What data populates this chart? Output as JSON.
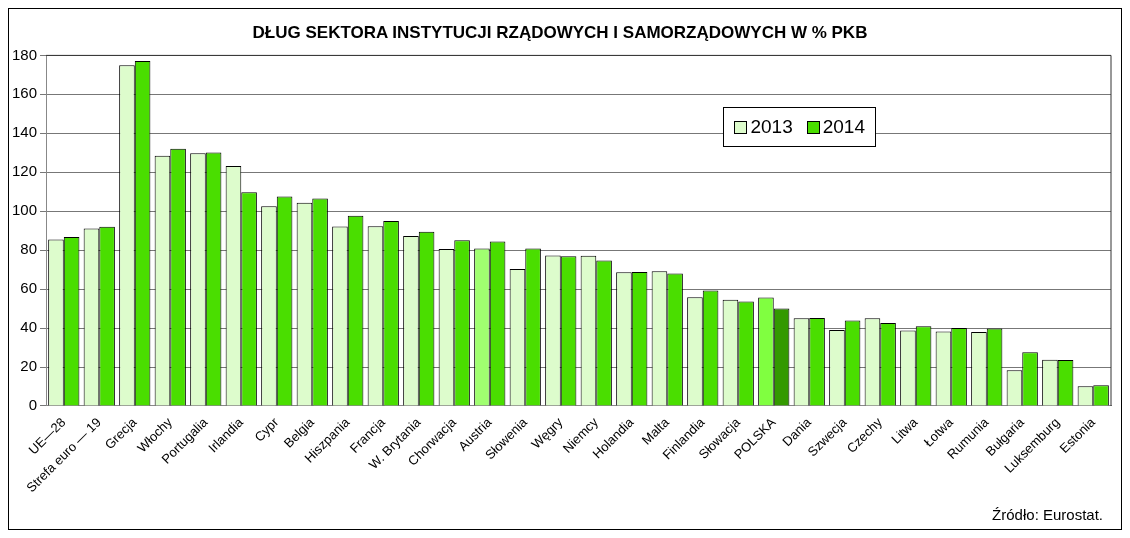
{
  "chart_data": {
    "type": "bar",
    "title": "DŁUG SEKTORA INSTYTUCJI RZĄDOWYCH I SAMORZĄDOWYCH W % PKB",
    "categories": [
      "UE—28",
      "Strefa euro — 19",
      "Grecja",
      "Włochy",
      "Portugalia",
      "Irlandia",
      "Cypr",
      "Belgia",
      "Hiszpania",
      "Francja",
      "W. Brytania",
      "Chorwacja",
      "Austria",
      "Słowenia",
      "Węgry",
      "Niemcy",
      "Holandia",
      "Malta",
      "Finlandia",
      "Słowacja",
      "POLSKA",
      "Dania",
      "Szwecja",
      "Czechy",
      "Litwa",
      "Łotwa",
      "Rumunia",
      "Bułgaria",
      "Luksemburg",
      "Estonia"
    ],
    "series": [
      {
        "name": "2013",
        "color": "#ddfccc",
        "colors": [
          "#ddfccc",
          "#ddfccc",
          "#ddfccc",
          "#ddfccc",
          "#ddfccc",
          "#ddfccc",
          "#ddfccc",
          "#ddfccc",
          "#ddfccc",
          "#ddfccc",
          "#ddfccc",
          "#ddfccc",
          "#a0ff70",
          "#ddfccc",
          "#ddfccc",
          "#ddfccc",
          "#ddfccc",
          "#ddfccc",
          "#ddfccc",
          "#ddfccc",
          "#80ff40",
          "#ddfccc",
          "#ddfccc",
          "#ddfccc",
          "#ddfccc",
          "#ddfccc",
          "#ddfccc",
          "#ddfccc",
          "#ddfccc",
          "#ddfccc"
        ],
        "values": [
          85.5,
          91.1,
          175.0,
          128.5,
          129.7,
          123.2,
          102.5,
          104.4,
          92.1,
          92.3,
          87.3,
          80.6,
          80.8,
          70.3,
          77.3,
          77.1,
          68.6,
          69.2,
          55.8,
          54.6,
          55.7,
          45.0,
          39.0,
          45.1,
          38.8,
          38.2,
          38.0,
          18.3,
          23.7,
          10.1
        ]
      },
      {
        "name": "2014",
        "color": "#4ade00",
        "colors": [
          "#4ade00",
          "#4ade00",
          "#4ade00",
          "#4ade00",
          "#4ade00",
          "#4ade00",
          "#4ade00",
          "#4ade00",
          "#4ade00",
          "#4ade00",
          "#4ade00",
          "#4ade00",
          "#4ade00",
          "#4ade00",
          "#4ade00",
          "#4ade00",
          "#4ade00",
          "#4ade00",
          "#4ade00",
          "#4ade00",
          "#339900",
          "#4ade00",
          "#4ade00",
          "#4ade00",
          "#4ade00",
          "#4ade00",
          "#4ade00",
          "#4ade00",
          "#4ade00",
          "#4ade00"
        ],
        "values": [
          86.8,
          92.0,
          177.1,
          132.1,
          130.2,
          109.7,
          107.5,
          106.5,
          97.7,
          95.0,
          89.4,
          85.1,
          84.5,
          80.9,
          76.9,
          74.7,
          68.8,
          68.0,
          59.3,
          53.6,
          50.1,
          45.2,
          43.9,
          42.6,
          40.9,
          40.0,
          39.8,
          27.6,
          23.6,
          10.6
        ]
      }
    ],
    "ylim": [
      0,
      180
    ],
    "yticks": [
      0,
      20,
      40,
      60,
      80,
      100,
      120,
      140,
      160,
      180
    ],
    "grid": "y",
    "legend": "top right",
    "annotations": [
      "Źródło: Eurostat."
    ]
  }
}
